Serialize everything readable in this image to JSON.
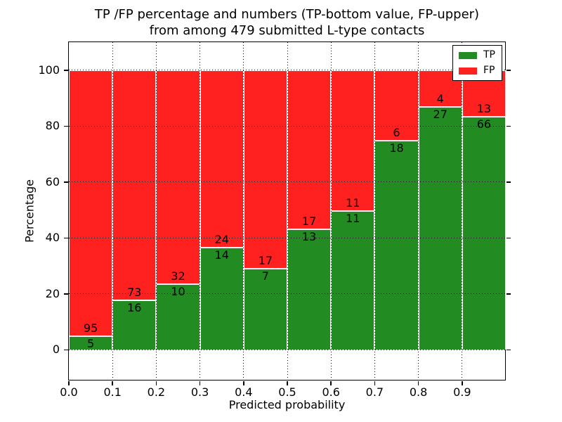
{
  "title": {
    "line1": "TP /FP percentage and numbers (TP-bottom value, FP-upper)",
    "line2": "from among 479 submitted L-type contacts"
  },
  "colors": {
    "tp_green": "#228b22",
    "fp_red": "#ff2020",
    "background": "#ffffff",
    "text": "#000000",
    "grid": "#000000",
    "bar_edge": "#ffffff"
  },
  "chart_data": {
    "type": "bar",
    "stacked": true,
    "normalized_to_percent": true,
    "title": "TP /FP percentage and numbers (TP-bottom value, FP-upper) from among 479 submitted L-type contacts",
    "xlabel": "Predicted probability",
    "ylabel": "Percentage",
    "xlim": [
      0.0,
      1.0
    ],
    "ylim": [
      -11,
      110
    ],
    "xticks": [
      "0.0",
      "0.1",
      "0.2",
      "0.3",
      "0.4",
      "0.5",
      "0.6",
      "0.7",
      "0.8",
      "0.9"
    ],
    "yticks": [
      "0",
      "20",
      "40",
      "60",
      "80",
      "100"
    ],
    "grid": true,
    "grid_style": "dotted",
    "legend": {
      "position": "upper right",
      "entries": [
        {
          "label": "TP",
          "color": "#228b22"
        },
        {
          "label": "FP",
          "color": "#ff2020"
        }
      ]
    },
    "series": [
      {
        "name": "TP",
        "role": "bottom",
        "counts": [
          5,
          16,
          10,
          14,
          7,
          13,
          11,
          18,
          27,
          66
        ]
      },
      {
        "name": "FP",
        "role": "upper",
        "counts": [
          95,
          73,
          32,
          24,
          17,
          17,
          11,
          6,
          4,
          13
        ]
      }
    ],
    "bins": [
      {
        "x_start": 0.0,
        "x_end": 0.1,
        "tp_count": 5,
        "fp_count": 95,
        "tp_percent": 5.0,
        "fp_percent": 95.0
      },
      {
        "x_start": 0.1,
        "x_end": 0.2,
        "tp_count": 16,
        "fp_count": 73,
        "tp_percent": 18.0,
        "fp_percent": 82.0
      },
      {
        "x_start": 0.2,
        "x_end": 0.3,
        "tp_count": 10,
        "fp_count": 32,
        "tp_percent": 23.8,
        "fp_percent": 76.2
      },
      {
        "x_start": 0.3,
        "x_end": 0.4,
        "tp_count": 14,
        "fp_count": 24,
        "tp_percent": 36.8,
        "fp_percent": 63.2
      },
      {
        "x_start": 0.4,
        "x_end": 0.5,
        "tp_count": 7,
        "fp_count": 17,
        "tp_percent": 29.2,
        "fp_percent": 70.8
      },
      {
        "x_start": 0.5,
        "x_end": 0.6,
        "tp_count": 13,
        "fp_count": 17,
        "tp_percent": 43.3,
        "fp_percent": 56.7
      },
      {
        "x_start": 0.6,
        "x_end": 0.7,
        "tp_count": 11,
        "fp_count": 11,
        "tp_percent": 50.0,
        "fp_percent": 50.0
      },
      {
        "x_start": 0.7,
        "x_end": 0.8,
        "tp_count": 18,
        "fp_count": 6,
        "tp_percent": 75.0,
        "fp_percent": 25.0
      },
      {
        "x_start": 0.8,
        "x_end": 0.9,
        "tp_count": 27,
        "fp_count": 4,
        "tp_percent": 87.1,
        "fp_percent": 12.9
      },
      {
        "x_start": 0.9,
        "x_end": 1.0,
        "tp_count": 66,
        "fp_count": 13,
        "tp_percent": 83.5,
        "fp_percent": 16.5
      }
    ]
  }
}
